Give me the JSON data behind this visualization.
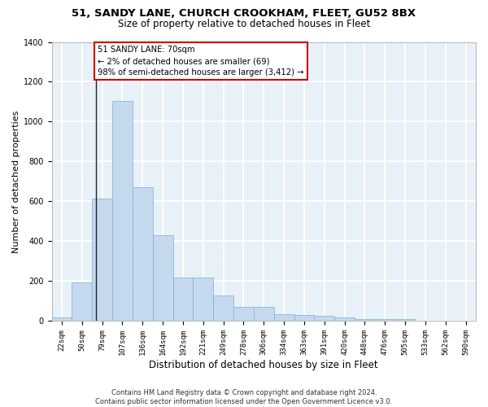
{
  "title1": "51, SANDY LANE, CHURCH CROOKHAM, FLEET, GU52 8BX",
  "title2": "Size of property relative to detached houses in Fleet",
  "xlabel": "Distribution of detached houses by size in Fleet",
  "ylabel": "Number of detached properties",
  "bar_color": "#c5d9ee",
  "bar_edge_color": "#7bafd4",
  "background_color": "#e8f0f8",
  "grid_color": "#ffffff",
  "annotation_box_edgecolor": "#cc0000",
  "annotation_line1": "51 SANDY LANE: 70sqm",
  "annotation_line2": "← 2% of detached houses are smaller (69)",
  "annotation_line3": "98% of semi-detached houses are larger (3,412) →",
  "categories": [
    "22sqm",
    "50sqm",
    "79sqm",
    "107sqm",
    "136sqm",
    "164sqm",
    "192sqm",
    "221sqm",
    "249sqm",
    "278sqm",
    "306sqm",
    "334sqm",
    "363sqm",
    "391sqm",
    "420sqm",
    "448sqm",
    "476sqm",
    "505sqm",
    "533sqm",
    "562sqm",
    "590sqm"
  ],
  "values": [
    18,
    195,
    615,
    1105,
    670,
    430,
    220,
    220,
    130,
    72,
    72,
    33,
    30,
    25,
    18,
    12,
    10,
    10,
    0,
    0,
    0
  ],
  "ylim_max": 1400,
  "yticks": [
    0,
    200,
    400,
    600,
    800,
    1000,
    1200,
    1400
  ],
  "footer_line1": "Contains HM Land Registry data © Crown copyright and database right 2024.",
  "footer_line2": "Contains public sector information licensed under the Open Government Licence v3.0.",
  "property_sqm": 70,
  "bin_start": [
    22,
    50,
    79,
    107,
    136,
    164,
    192,
    221,
    249,
    278,
    306,
    334,
    363,
    391,
    420,
    448,
    476,
    505,
    533,
    562,
    590
  ]
}
